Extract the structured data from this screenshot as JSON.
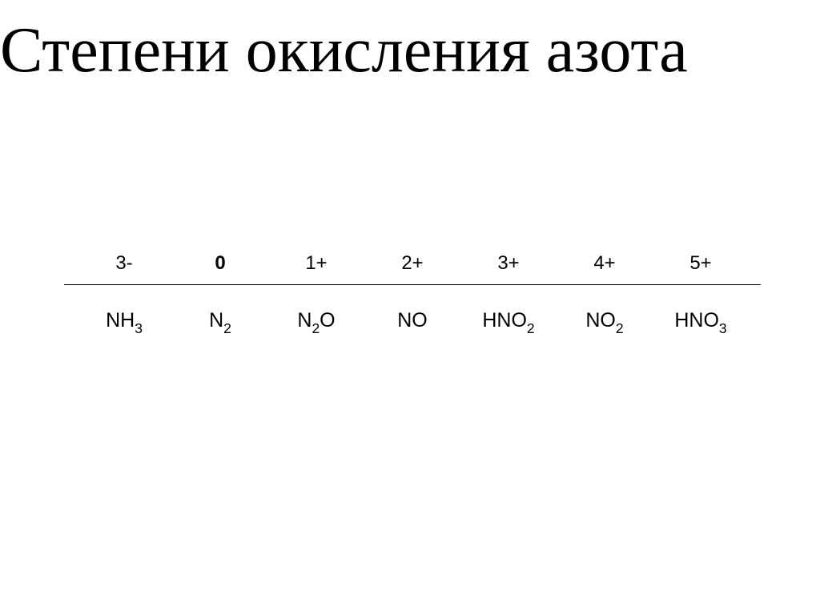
{
  "title": "Степени окисления азота",
  "diagram": {
    "type": "table",
    "oxidation_states": [
      {
        "label": "3-",
        "bold": false
      },
      {
        "label": "0",
        "bold": true
      },
      {
        "label": "1+",
        "bold": false
      },
      {
        "label": "2+",
        "bold": false
      },
      {
        "label": "3+",
        "bold": false
      },
      {
        "label": "4+",
        "bold": false
      },
      {
        "label": "5+",
        "bold": false
      }
    ],
    "compounds": [
      {
        "base": "NH",
        "sub": "3"
      },
      {
        "base": "N",
        "sub": "2"
      },
      {
        "base_pre": "N",
        "sub_mid": "2",
        "base_post": "O"
      },
      {
        "base": "NO",
        "sub": ""
      },
      {
        "base_pre": "HNO",
        "sub_mid": "2",
        "base_post": ""
      },
      {
        "base_pre": "NO",
        "sub_mid": "2",
        "base_post": ""
      },
      {
        "base_pre": "HNO",
        "sub_mid": "3",
        "base_post": ""
      }
    ],
    "colors": {
      "background": "#ffffff",
      "text": "#000000",
      "line": "#000000"
    },
    "title_fontsize": 80,
    "label_fontsize": 24,
    "compound_fontsize": 25
  }
}
